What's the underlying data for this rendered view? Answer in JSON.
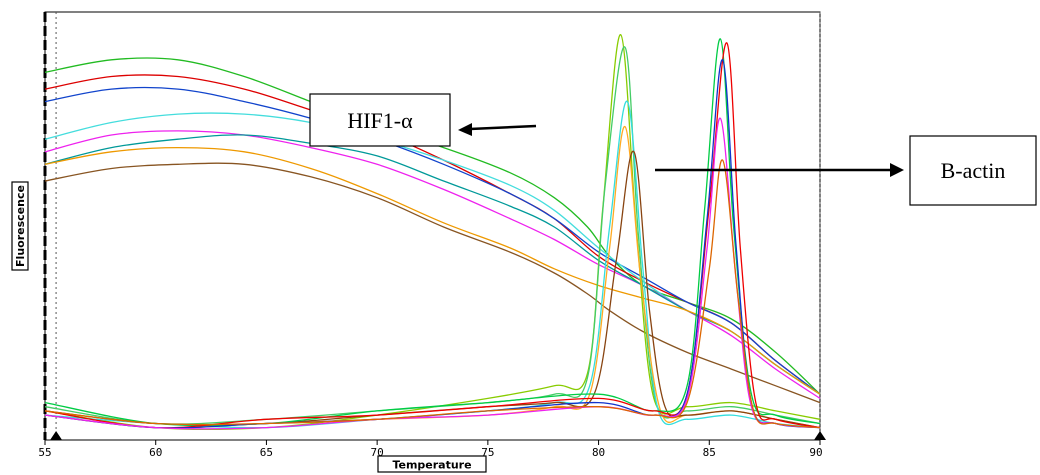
{
  "chart_data": {
    "type": "line",
    "title": "",
    "xlabel": "Temperature",
    "ylabel": "Fluorescence",
    "xlim": [
      55,
      90
    ],
    "x_ticks": [
      "55",
      "60",
      "65",
      "70",
      "75",
      "80",
      "85",
      "90"
    ],
    "y_tick_labels": [],
    "grid": false,
    "threshold_markers_x": [
      55.5,
      90
    ],
    "annotations": [
      {
        "text": "HIF1-α",
        "points_to_x": 81,
        "arrow": "left"
      },
      {
        "text": "B-actin",
        "points_to_x": 85.5,
        "arrow": "right"
      }
    ],
    "series": [
      {
        "color": "#22bb22",
        "kind": "melt",
        "values": [
          [
            55,
            0.87
          ],
          [
            58,
            0.9
          ],
          [
            61,
            0.9
          ],
          [
            64,
            0.86
          ],
          [
            67,
            0.8
          ],
          [
            70,
            0.74
          ],
          [
            73,
            0.69
          ],
          [
            76,
            0.63
          ],
          [
            78,
            0.57
          ],
          [
            79.5,
            0.5
          ],
          [
            80.5,
            0.43
          ],
          [
            82,
            0.36
          ],
          [
            84,
            0.32
          ],
          [
            86,
            0.28
          ],
          [
            88,
            0.2
          ],
          [
            90,
            0.1
          ]
        ]
      },
      {
        "color": "#dd0000",
        "kind": "melt",
        "values": [
          [
            55,
            0.83
          ],
          [
            58,
            0.86
          ],
          [
            61,
            0.86
          ],
          [
            64,
            0.83
          ],
          [
            67,
            0.78
          ],
          [
            70,
            0.73
          ],
          [
            73,
            0.66
          ],
          [
            76,
            0.58
          ],
          [
            78,
            0.52
          ],
          [
            80,
            0.43
          ],
          [
            82,
            0.37
          ],
          [
            84,
            0.32
          ],
          [
            86,
            0.27
          ],
          [
            88,
            0.18
          ],
          [
            90,
            0.1
          ]
        ]
      },
      {
        "color": "#1144cc",
        "kind": "melt",
        "values": [
          [
            55,
            0.8
          ],
          [
            58,
            0.83
          ],
          [
            61,
            0.83
          ],
          [
            64,
            0.8
          ],
          [
            67,
            0.76
          ],
          [
            70,
            0.71
          ],
          [
            73,
            0.65
          ],
          [
            76,
            0.58
          ],
          [
            78,
            0.52
          ],
          [
            80,
            0.44
          ],
          [
            82,
            0.38
          ],
          [
            84,
            0.32
          ],
          [
            86,
            0.27
          ],
          [
            88,
            0.18
          ],
          [
            90,
            0.1
          ]
        ]
      },
      {
        "color": "#44dddd",
        "kind": "melt",
        "values": [
          [
            55,
            0.71
          ],
          [
            58,
            0.75
          ],
          [
            61,
            0.77
          ],
          [
            64,
            0.77
          ],
          [
            67,
            0.75
          ],
          [
            70,
            0.71
          ],
          [
            73,
            0.66
          ],
          [
            76,
            0.6
          ],
          [
            78,
            0.54
          ],
          [
            80,
            0.45
          ],
          [
            82,
            0.37
          ],
          [
            84,
            0.3
          ],
          [
            86,
            0.25
          ],
          [
            88,
            0.17
          ],
          [
            90,
            0.1
          ]
        ]
      },
      {
        "color": "#ee22ee",
        "kind": "melt",
        "values": [
          [
            55,
            0.68
          ],
          [
            58,
            0.72
          ],
          [
            61,
            0.73
          ],
          [
            64,
            0.72
          ],
          [
            67,
            0.69
          ],
          [
            70,
            0.65
          ],
          [
            73,
            0.59
          ],
          [
            76,
            0.52
          ],
          [
            78,
            0.47
          ],
          [
            80,
            0.41
          ],
          [
            82,
            0.36
          ],
          [
            84,
            0.3
          ],
          [
            86,
            0.24
          ],
          [
            88,
            0.16
          ],
          [
            90,
            0.09
          ]
        ]
      },
      {
        "color": "#009999",
        "kind": "melt",
        "values": [
          [
            55,
            0.65
          ],
          [
            58,
            0.69
          ],
          [
            61,
            0.71
          ],
          [
            64,
            0.72
          ],
          [
            67,
            0.7
          ],
          [
            70,
            0.67
          ],
          [
            73,
            0.61
          ],
          [
            76,
            0.55
          ],
          [
            78,
            0.5
          ],
          [
            80,
            0.42
          ],
          [
            82,
            0.36
          ],
          [
            84,
            0.3
          ],
          [
            86,
            0.25
          ],
          [
            88,
            0.17
          ],
          [
            90,
            0.1
          ]
        ]
      },
      {
        "color": "#ee9900",
        "kind": "melt",
        "values": [
          [
            55,
            0.65
          ],
          [
            58,
            0.68
          ],
          [
            61,
            0.69
          ],
          [
            64,
            0.68
          ],
          [
            67,
            0.64
          ],
          [
            70,
            0.58
          ],
          [
            73,
            0.51
          ],
          [
            76,
            0.45
          ],
          [
            78,
            0.4
          ],
          [
            80,
            0.36
          ],
          [
            82,
            0.33
          ],
          [
            84,
            0.3
          ],
          [
            86,
            0.25
          ],
          [
            88,
            0.17
          ],
          [
            90,
            0.1
          ]
        ]
      },
      {
        "color": "#885522",
        "kind": "melt",
        "values": [
          [
            55,
            0.61
          ],
          [
            58,
            0.64
          ],
          [
            61,
            0.65
          ],
          [
            64,
            0.65
          ],
          [
            67,
            0.62
          ],
          [
            70,
            0.57
          ],
          [
            73,
            0.5
          ],
          [
            76,
            0.44
          ],
          [
            78,
            0.39
          ],
          [
            79.5,
            0.34
          ],
          [
            80.5,
            0.3
          ],
          [
            82,
            0.25
          ],
          [
            84,
            0.2
          ],
          [
            86,
            0.16
          ],
          [
            88,
            0.12
          ],
          [
            90,
            0.08
          ]
        ]
      },
      {
        "color": "#88cc00",
        "kind": "peak",
        "values": [
          [
            55,
            0.06
          ],
          [
            60,
            0.02
          ],
          [
            65,
            0.02
          ],
          [
            70,
            0.05
          ],
          [
            75,
            0.09
          ],
          [
            78,
            0.12
          ],
          [
            79.5,
            0.15
          ],
          [
            80.2,
            0.55
          ],
          [
            81,
            0.96
          ],
          [
            81.7,
            0.5
          ],
          [
            82.5,
            0.09
          ],
          [
            84,
            0.07
          ],
          [
            86,
            0.08
          ],
          [
            88,
            0.06
          ],
          [
            90,
            0.04
          ]
        ]
      },
      {
        "color": "#44cc66",
        "kind": "peak",
        "values": [
          [
            55,
            0.07
          ],
          [
            60,
            0.03
          ],
          [
            65,
            0.04
          ],
          [
            70,
            0.06
          ],
          [
            75,
            0.08
          ],
          [
            78,
            0.1
          ],
          [
            79.5,
            0.14
          ],
          [
            80.3,
            0.6
          ],
          [
            81.2,
            0.93
          ],
          [
            81.8,
            0.48
          ],
          [
            82.6,
            0.08
          ],
          [
            84,
            0.06
          ],
          [
            86,
            0.07
          ],
          [
            88,
            0.05
          ],
          [
            90,
            0.03
          ]
        ]
      },
      {
        "color": "#33dddd",
        "kind": "peak",
        "values": [
          [
            55,
            0.05
          ],
          [
            60,
            0.03
          ],
          [
            65,
            0.02
          ],
          [
            70,
            0.04
          ],
          [
            75,
            0.06
          ],
          [
            78,
            0.08
          ],
          [
            79.6,
            0.12
          ],
          [
            80.5,
            0.5
          ],
          [
            81.3,
            0.8
          ],
          [
            82,
            0.4
          ],
          [
            82.7,
            0.06
          ],
          [
            84,
            0.04
          ],
          [
            86,
            0.05
          ],
          [
            88,
            0.03
          ],
          [
            90,
            0.02
          ]
        ]
      },
      {
        "color": "#ffaa22",
        "kind": "peak",
        "values": [
          [
            55,
            0.05
          ],
          [
            60,
            0.02
          ],
          [
            65,
            0.03
          ],
          [
            70,
            0.04
          ],
          [
            75,
            0.05
          ],
          [
            78,
            0.07
          ],
          [
            79.6,
            0.1
          ],
          [
            80.5,
            0.45
          ],
          [
            81.2,
            0.74
          ],
          [
            81.9,
            0.38
          ],
          [
            82.8,
            0.06
          ],
          [
            84,
            0.05
          ],
          [
            86,
            0.06
          ],
          [
            88,
            0.04
          ],
          [
            90,
            0.02
          ]
        ]
      },
      {
        "color": "#884411",
        "kind": "peak",
        "values": [
          [
            55,
            0.06
          ],
          [
            60,
            0.03
          ],
          [
            65,
            0.03
          ],
          [
            70,
            0.05
          ],
          [
            75,
            0.07
          ],
          [
            78,
            0.08
          ],
          [
            79.8,
            0.1
          ],
          [
            80.8,
            0.42
          ],
          [
            81.6,
            0.68
          ],
          [
            82.3,
            0.3
          ],
          [
            83,
            0.07
          ],
          [
            84,
            0.05
          ],
          [
            86,
            0.06
          ],
          [
            88,
            0.04
          ],
          [
            90,
            0.02
          ]
        ]
      },
      {
        "color": "#00cc44",
        "kind": "peak",
        "values": [
          [
            55,
            0.08
          ],
          [
            60,
            0.03
          ],
          [
            65,
            0.03
          ],
          [
            70,
            0.06
          ],
          [
            75,
            0.08
          ],
          [
            80,
            0.1
          ],
          [
            82.5,
            0.06
          ],
          [
            84,
            0.12
          ],
          [
            84.8,
            0.55
          ],
          [
            85.5,
            0.95
          ],
          [
            86.1,
            0.5
          ],
          [
            86.9,
            0.1
          ],
          [
            88,
            0.05
          ],
          [
            90,
            0.03
          ]
        ]
      },
      {
        "color": "#ee0000",
        "kind": "peak",
        "values": [
          [
            55,
            0.06
          ],
          [
            60,
            0.02
          ],
          [
            65,
            0.04
          ],
          [
            70,
            0.05
          ],
          [
            75,
            0.07
          ],
          [
            80,
            0.09
          ],
          [
            82.5,
            0.06
          ],
          [
            84,
            0.1
          ],
          [
            85,
            0.55
          ],
          [
            85.8,
            0.94
          ],
          [
            86.4,
            0.45
          ],
          [
            87.1,
            0.08
          ],
          [
            88,
            0.04
          ],
          [
            90,
            0.02
          ]
        ]
      },
      {
        "color": "#1133cc",
        "kind": "peak",
        "values": [
          [
            55,
            0.05
          ],
          [
            60,
            0.02
          ],
          [
            65,
            0.03
          ],
          [
            70,
            0.04
          ],
          [
            75,
            0.06
          ],
          [
            80,
            0.08
          ],
          [
            82.5,
            0.05
          ],
          [
            84,
            0.1
          ],
          [
            84.9,
            0.52
          ],
          [
            85.6,
            0.9
          ],
          [
            86.2,
            0.46
          ],
          [
            86.9,
            0.08
          ],
          [
            88,
            0.03
          ],
          [
            90,
            0.02
          ]
        ]
      },
      {
        "color": "#ee22ee",
        "kind": "peak",
        "values": [
          [
            55,
            0.05
          ],
          [
            60,
            0.02
          ],
          [
            65,
            0.02
          ],
          [
            70,
            0.04
          ],
          [
            75,
            0.05
          ],
          [
            80,
            0.07
          ],
          [
            82.5,
            0.05
          ],
          [
            84,
            0.09
          ],
          [
            84.9,
            0.45
          ],
          [
            85.5,
            0.76
          ],
          [
            86.2,
            0.38
          ],
          [
            86.9,
            0.07
          ],
          [
            88,
            0.03
          ],
          [
            90,
            0.02
          ]
        ]
      },
      {
        "color": "#dd6600",
        "kind": "peak",
        "values": [
          [
            55,
            0.06
          ],
          [
            60,
            0.03
          ],
          [
            65,
            0.03
          ],
          [
            70,
            0.04
          ],
          [
            75,
            0.06
          ],
          [
            80,
            0.07
          ],
          [
            82.5,
            0.05
          ],
          [
            84,
            0.08
          ],
          [
            85,
            0.4
          ],
          [
            85.6,
            0.66
          ],
          [
            86.3,
            0.33
          ],
          [
            87,
            0.06
          ],
          [
            88,
            0.03
          ],
          [
            90,
            0.02
          ]
        ]
      }
    ]
  }
}
